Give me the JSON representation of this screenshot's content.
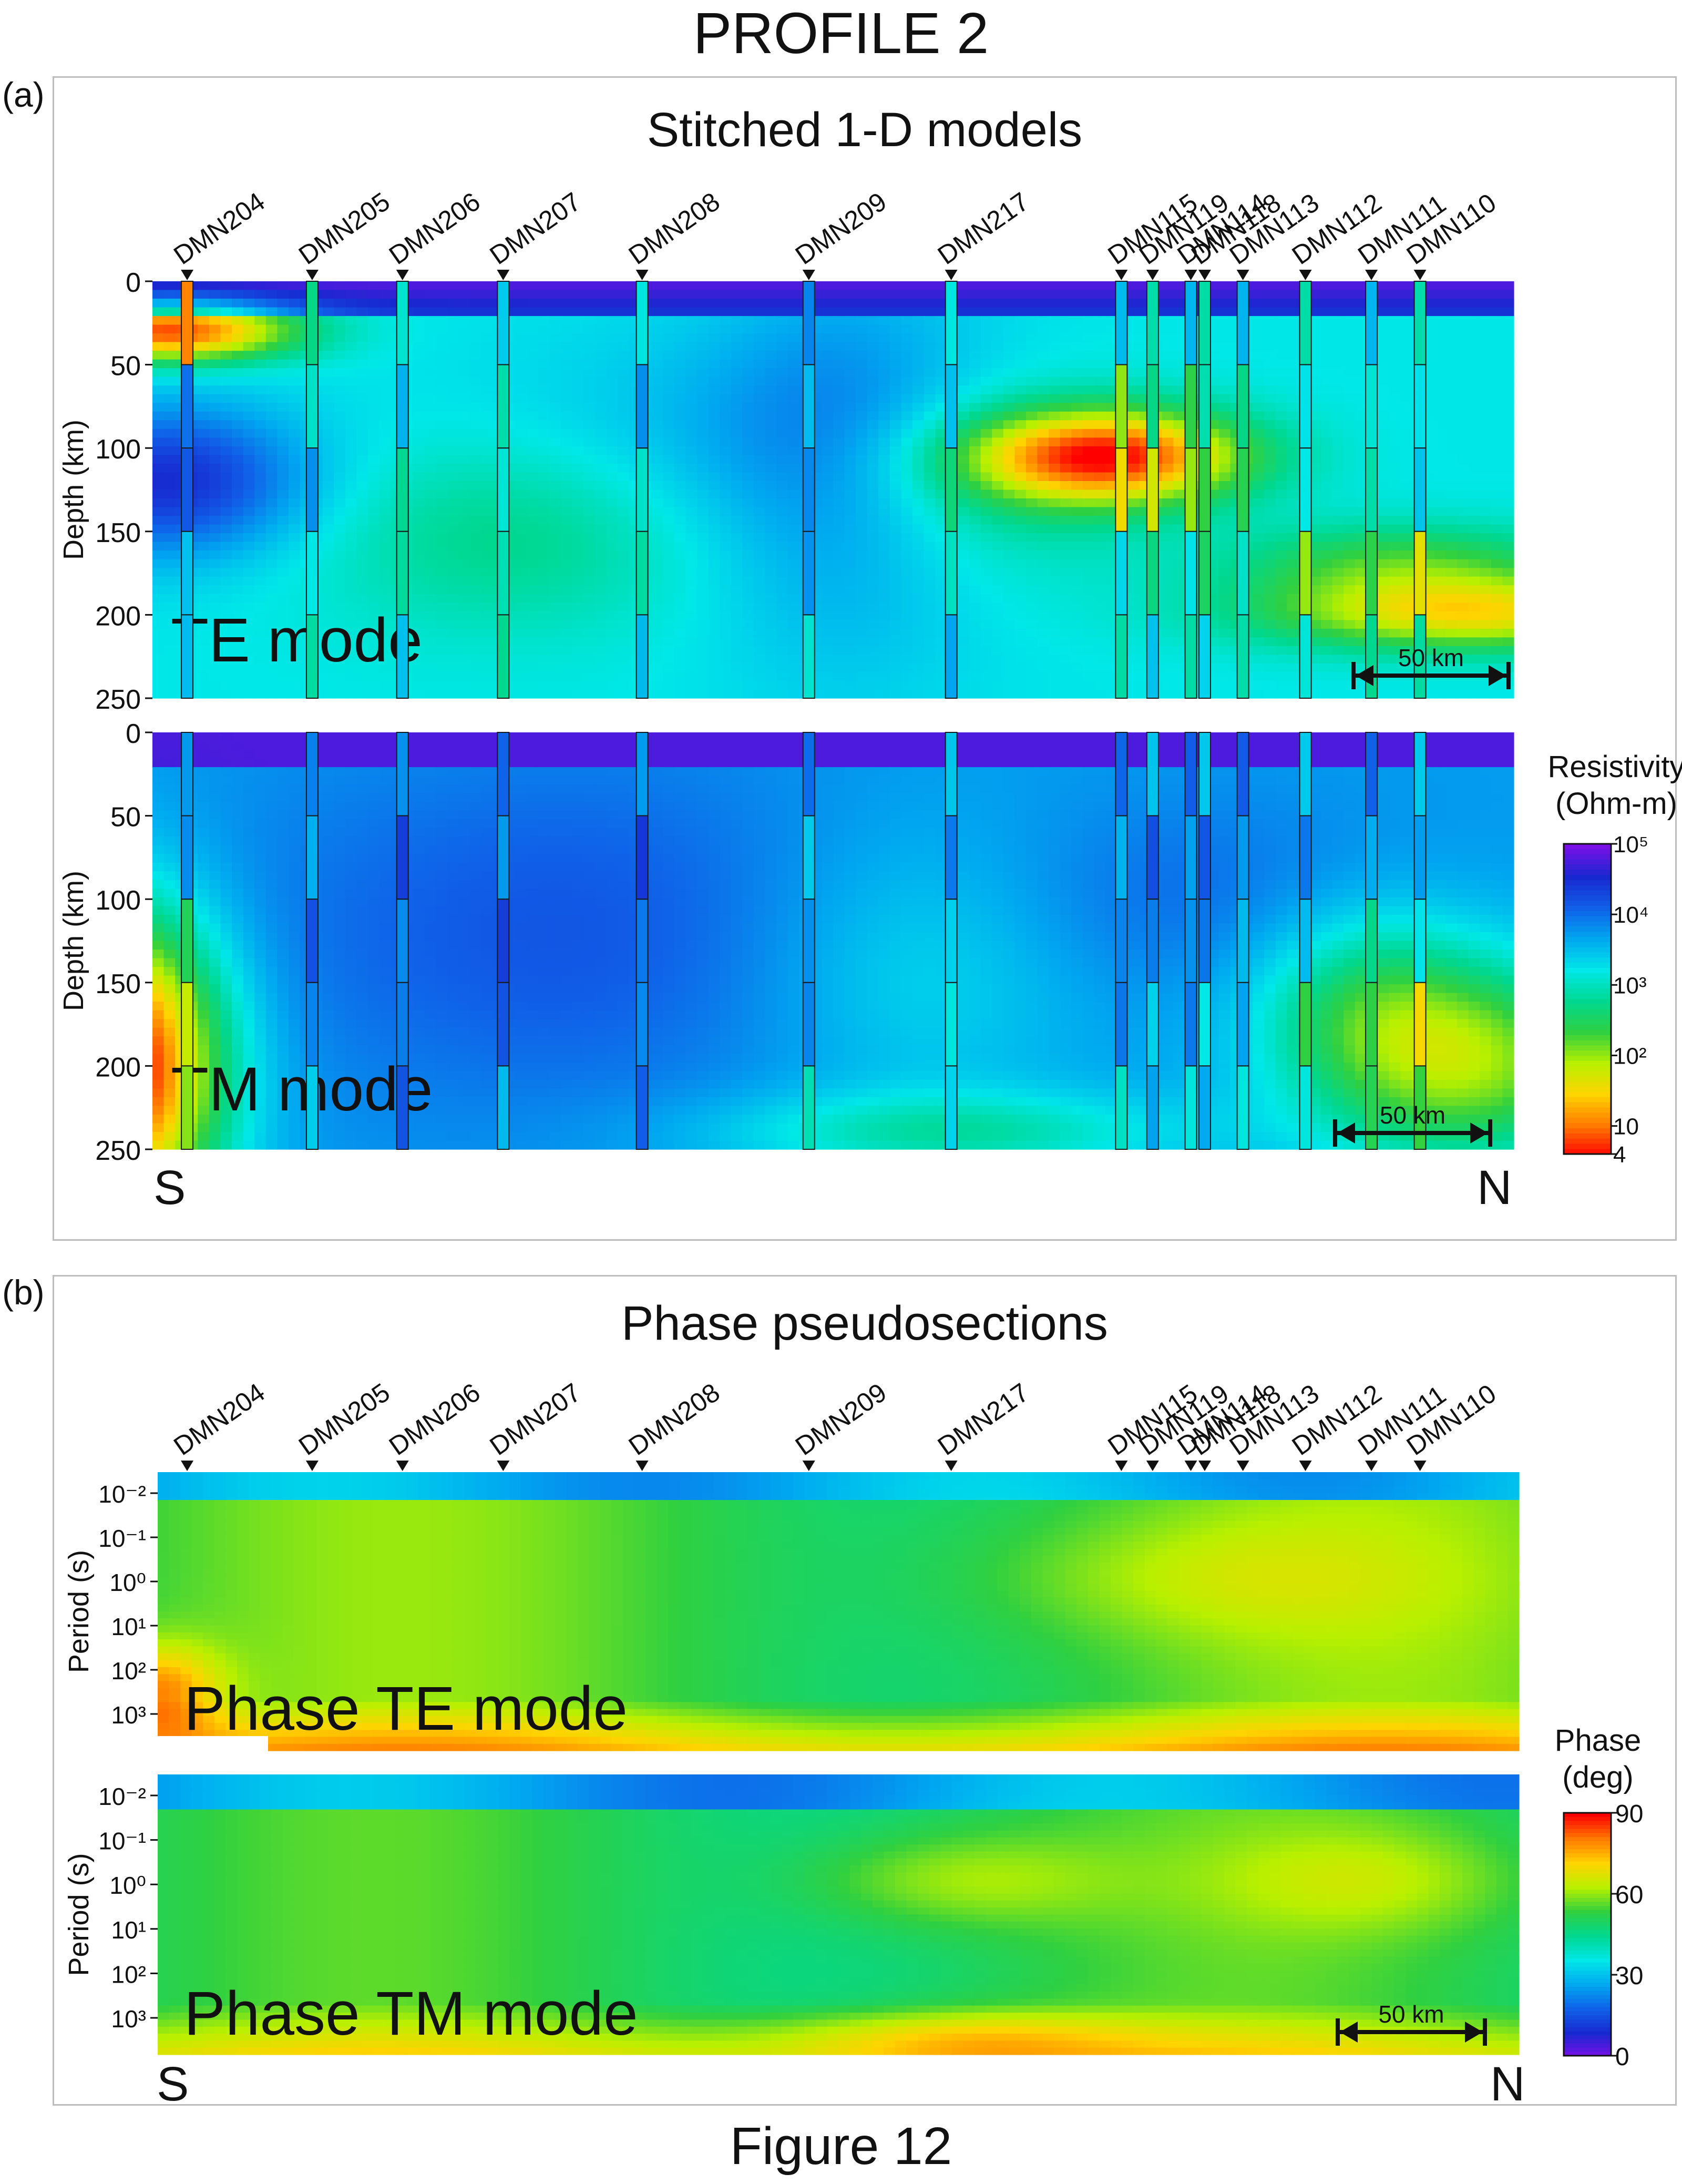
{
  "figure": {
    "title": "PROFILE 2",
    "caption": "Figure 12",
    "panel_a_label": "(a)",
    "panel_b_label": "(b)",
    "panel_a_title": "Stitched 1-D models",
    "panel_b_title": "Phase pseudosections",
    "south_label": "S",
    "north_label": "N",
    "scale_bar": "50 km"
  },
  "colors": {
    "resistivity_ramp": [
      "#ff0000",
      "#ff7a00",
      "#ffd400",
      "#b8f000",
      "#30d040",
      "#00d890",
      "#00e8e8",
      "#00a8f0",
      "#1060e8",
      "#1828d0",
      "#7a10e8"
    ],
    "phase_ramp": [
      "#7a10e8",
      "#1828d0",
      "#1060e8",
      "#00a8f0",
      "#00e8e8",
      "#00d890",
      "#30d040",
      "#b8f000",
      "#ffd400",
      "#ff7a00",
      "#ff0000"
    ]
  },
  "chart_data": [
    {
      "type": "heatmap",
      "title": "TE mode",
      "ylabel": "Depth (km)",
      "ylim": [
        0,
        250
      ],
      "y_ticks": [
        "0",
        "50",
        "100",
        "150",
        "200",
        "250"
      ],
      "stations": [
        "DMN204",
        "DMN205",
        "DMN206",
        "DMN207",
        "DMN208",
        "DMN209",
        "DMN217",
        "DMN115",
        "DMN119",
        "DMN114",
        "DMN118",
        "DMN113",
        "DMN112",
        "DMN111",
        "DMN110"
      ],
      "station_positions_km": [
        10,
        46,
        72,
        101,
        141,
        189,
        230,
        279,
        288,
        299,
        303,
        314,
        332,
        351,
        365
      ],
      "profile_length_km": 392,
      "scale_bar_km": 50
    },
    {
      "type": "heatmap",
      "title": "TM mode",
      "ylabel": "Depth (km)",
      "ylim": [
        0,
        250
      ],
      "y_ticks": [
        "0",
        "50",
        "100",
        "150",
        "200",
        "250"
      ],
      "stations": [
        "DMN204",
        "DMN205",
        "DMN206",
        "DMN207",
        "DMN208",
        "DMN209",
        "DMN217",
        "DMN115",
        "DMN119",
        "DMN114",
        "DMN118",
        "DMN113",
        "DMN112",
        "DMN111",
        "DMN110"
      ],
      "colorbar": {
        "title_line1": "Resistivity",
        "title_line2": "(Ohm-m)",
        "tick_labels": [
          "4",
          "10",
          "10²",
          "10³",
          "10⁴",
          "10⁵"
        ],
        "tick_values": [
          4,
          10,
          100,
          1000,
          10000,
          100000
        ],
        "scale": "log"
      },
      "scale_bar_km": 50
    },
    {
      "type": "heatmap",
      "title": "Phase TE mode",
      "ylabel": "Period (s)",
      "y_ticks": [
        "10⁻²",
        "10⁻¹",
        "10⁰",
        "10¹",
        "10²",
        "10³"
      ],
      "y_tick_values": [
        0.01,
        0.1,
        1,
        10,
        100,
        1000
      ],
      "scale": "log",
      "stations": [
        "DMN204",
        "DMN205",
        "DMN206",
        "DMN207",
        "DMN208",
        "DMN209",
        "DMN217",
        "DMN115",
        "DMN119",
        "DMN114",
        "DMN118",
        "DMN113",
        "DMN112",
        "DMN111",
        "DMN110"
      ]
    },
    {
      "type": "heatmap",
      "title": "Phase TM mode",
      "ylabel": "Period (s)",
      "y_ticks": [
        "10⁻²",
        "10⁻¹",
        "10⁰",
        "10¹",
        "10²",
        "10³"
      ],
      "y_tick_values": [
        0.01,
        0.1,
        1,
        10,
        100,
        1000
      ],
      "colorbar": {
        "title_line1": "Phase",
        "title_line2": "(deg)",
        "tick_labels": [
          "0",
          "30",
          "60",
          "90"
        ],
        "tick_values": [
          0,
          30,
          60,
          90
        ],
        "scale": "linear"
      },
      "scale_bar_km": 50
    }
  ]
}
